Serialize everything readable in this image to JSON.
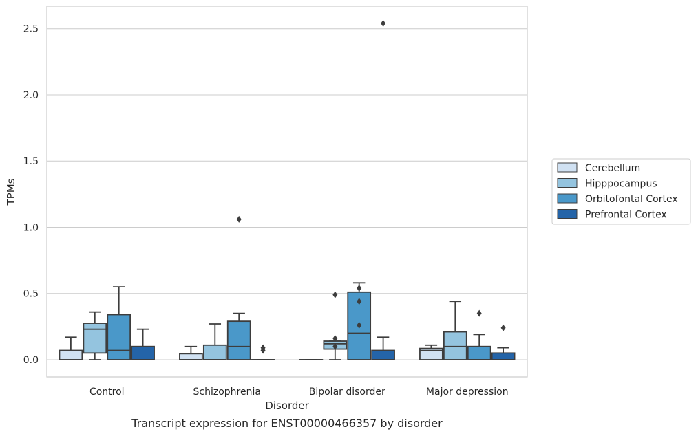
{
  "caption": "Transcript expression for ENST00000466357 by disorder",
  "chart_data": {
    "type": "box",
    "xlabel": "Disorder",
    "ylabel": "TPMs",
    "categories": [
      "Control",
      "Schizophrenia",
      "Bipolar disorder",
      "Major depression"
    ],
    "ylim": [
      -0.13,
      2.67
    ],
    "yticks": [
      0.0,
      0.5,
      1.0,
      1.5,
      2.0,
      2.5
    ],
    "ytick_labels": [
      "0.0",
      "0.5",
      "1.0",
      "1.5",
      "2.0",
      "2.5"
    ],
    "grid": true,
    "legend_position": "right",
    "series": [
      {
        "name": "Cerebellum",
        "color": "#d0e1f2",
        "boxes": [
          {
            "whisker_low": 0.0,
            "q1": 0.0,
            "median": 0.0,
            "q3": 0.07,
            "whisker_high": 0.17,
            "outliers": []
          },
          {
            "whisker_low": 0.0,
            "q1": 0.0,
            "median": 0.0,
            "q3": 0.045,
            "whisker_high": 0.1,
            "outliers": []
          },
          {
            "whisker_low": 0.0,
            "q1": 0.0,
            "median": 0.0,
            "q3": 0.0,
            "whisker_high": 0.0,
            "outliers": []
          },
          {
            "whisker_low": 0.0,
            "q1": 0.0,
            "median": 0.07,
            "q3": 0.085,
            "whisker_high": 0.11,
            "outliers": []
          }
        ]
      },
      {
        "name": "Hipppocampus",
        "color": "#94c4df",
        "boxes": [
          {
            "whisker_low": 0.0,
            "q1": 0.05,
            "median": 0.23,
            "q3": 0.275,
            "whisker_high": 0.36,
            "outliers": []
          },
          {
            "whisker_low": 0.0,
            "q1": 0.0,
            "median": 0.0,
            "q3": 0.11,
            "whisker_high": 0.27,
            "outliers": []
          },
          {
            "whisker_low": 0.0,
            "q1": 0.08,
            "median": 0.12,
            "q3": 0.14,
            "whisker_high": 0.14,
            "outliers": [
              0.49,
              0.16,
              0.1
            ]
          },
          {
            "whisker_low": 0.0,
            "q1": 0.0,
            "median": 0.1,
            "q3": 0.21,
            "whisker_high": 0.44,
            "outliers": []
          }
        ]
      },
      {
        "name": "Orbitofontal Cortex",
        "color": "#4a98c9",
        "boxes": [
          {
            "whisker_low": 0.0,
            "q1": 0.0,
            "median": 0.07,
            "q3": 0.34,
            "whisker_high": 0.55,
            "outliers": []
          },
          {
            "whisker_low": 0.0,
            "q1": 0.0,
            "median": 0.1,
            "q3": 0.29,
            "whisker_high": 0.35,
            "outliers": [
              1.06
            ]
          },
          {
            "whisker_low": 0.0,
            "q1": 0.0,
            "median": 0.2,
            "q3": 0.51,
            "whisker_high": 0.58,
            "outliers": [
              0.54,
              0.44,
              0.26
            ]
          },
          {
            "whisker_low": 0.0,
            "q1": 0.0,
            "median": 0.0,
            "q3": 0.1,
            "whisker_high": 0.19,
            "outliers": [
              0.35
            ]
          }
        ]
      },
      {
        "name": "Prefrontal Cortex",
        "color": "#2464a8",
        "boxes": [
          {
            "whisker_low": 0.0,
            "q1": 0.0,
            "median": 0.0,
            "q3": 0.1,
            "whisker_high": 0.23,
            "outliers": []
          },
          {
            "whisker_low": 0.0,
            "q1": 0.0,
            "median": 0.0,
            "q3": 0.0,
            "whisker_high": 0.0,
            "outliers": [
              0.09,
              0.07
            ]
          },
          {
            "whisker_low": 0.0,
            "q1": 0.0,
            "median": 0.0,
            "q3": 0.07,
            "whisker_high": 0.17,
            "outliers": [
              2.54
            ]
          },
          {
            "whisker_low": 0.0,
            "q1": 0.0,
            "median": 0.0,
            "q3": 0.05,
            "whisker_high": 0.09,
            "outliers": [
              0.24
            ]
          }
        ]
      }
    ]
  }
}
